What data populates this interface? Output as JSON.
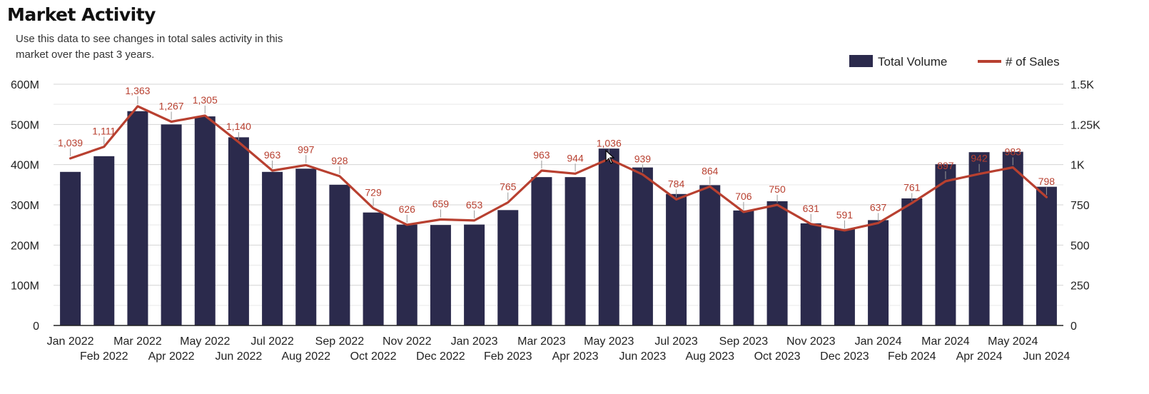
{
  "header": {
    "title": "Market Activity",
    "subtitle": "Use this data to see changes in total sales activity in this market over the past 3 years."
  },
  "chart_data": {
    "type": "bar",
    "title": "Market Activity",
    "categories": [
      "Jan 2022",
      "Feb 2022",
      "Mar 2022",
      "Apr 2022",
      "May 2022",
      "Jun 2022",
      "Jul 2022",
      "Aug 2022",
      "Sep 2022",
      "Oct 2022",
      "Nov 2022",
      "Dec 2022",
      "Jan 2023",
      "Feb 2023",
      "Mar 2023",
      "Apr 2023",
      "May 2023",
      "Jun 2023",
      "Jul 2023",
      "Aug 2023",
      "Sep 2023",
      "Oct 2023",
      "Nov 2023",
      "Dec 2023",
      "Jan 2024",
      "Feb 2024",
      "Mar 2024",
      "Apr 2024",
      "May 2024",
      "Jun 2024"
    ],
    "series": [
      {
        "name": "Total Volume",
        "type": "bar",
        "axis": "left",
        "color": "#2b2a4c",
        "values": [
          382000000,
          421000000,
          533000000,
          500000000,
          520000000,
          468000000,
          382000000,
          390000000,
          350000000,
          281000000,
          251000000,
          250000000,
          251000000,
          287000000,
          369000000,
          369000000,
          440000000,
          393000000,
          327000000,
          349000000,
          286000000,
          309000000,
          254000000,
          240000000,
          262000000,
          316000000,
          401000000,
          431000000,
          432000000,
          345000000
        ]
      },
      {
        "name": "# of Sales",
        "type": "line",
        "axis": "right",
        "color": "#b84030",
        "values": [
          1039,
          1111,
          1363,
          1267,
          1305,
          1140,
          963,
          997,
          928,
          729,
          626,
          659,
          653,
          765,
          963,
          944,
          1036,
          939,
          784,
          864,
          706,
          750,
          631,
          591,
          637,
          761,
          897,
          942,
          983,
          798
        ],
        "labels": [
          "1,039",
          "1,111",
          "1,363",
          "1,267",
          "1,305",
          "1,140",
          "963",
          "997",
          "928",
          "729",
          "626",
          "659",
          "653",
          "765",
          "963",
          "944",
          "1,036",
          "939",
          "784",
          "864",
          "706",
          "750",
          "631",
          "591",
          "637",
          "761",
          "897",
          "942",
          "983",
          "798"
        ]
      }
    ],
    "y_left": {
      "ylim": [
        0,
        600000000
      ],
      "ticks": [
        "0",
        "100M",
        "200M",
        "300M",
        "400M",
        "500M",
        "600M"
      ]
    },
    "y_right": {
      "ylim": [
        0,
        1500
      ],
      "ticks": [
        "0",
        "250",
        "500",
        "750",
        "1K",
        "1.25K",
        "1.5K"
      ]
    },
    "grid": true,
    "legend_position": "top-right"
  }
}
